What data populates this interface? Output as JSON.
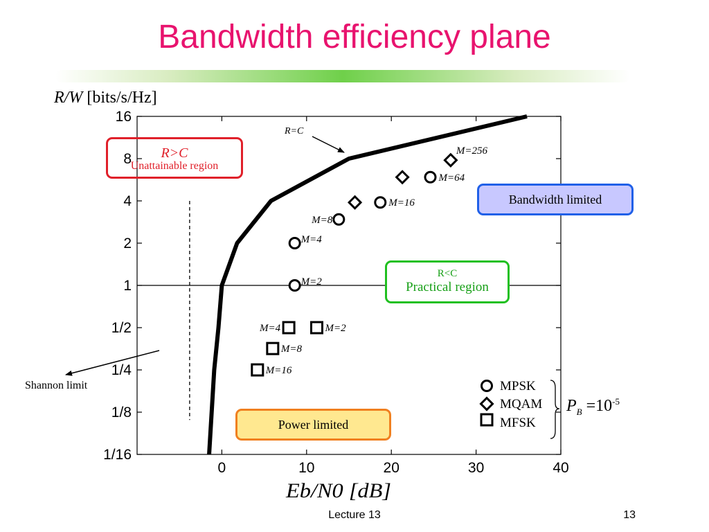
{
  "slide": {
    "title": "Bandwidth efficiency plane",
    "footer_center": "Lecture 13",
    "footer_page": "13"
  },
  "y_label": {
    "italic": "R/W",
    "rest": " [bits/s/Hz]"
  },
  "colors": {
    "title": "#e8136e",
    "unattainable": "#e0202a",
    "bandwidth_border": "#2060e8",
    "bandwidth_fill": "#c8c8ff",
    "practical": "#20c020",
    "power_border": "#f08020",
    "power_fill": "#ffe890"
  },
  "boxes": {
    "unattainable_line1": "R>C",
    "unattainable_line2": "Unattainable region",
    "bandwidth": "Bandwidth limited",
    "practical_line1": "R<C",
    "practical_line2": "Practical region",
    "power": "Power limited"
  },
  "annotations": {
    "rc_label": "R=C",
    "shannon": "Shannon limit"
  },
  "legend": {
    "mpsk": "MPSK",
    "mqam": "MQAM",
    "mfsk": "MFSK",
    "pb_symbol": "P",
    "pb_sub": "B",
    "pb_rest": " =10",
    "pb_exp": "-5"
  },
  "chart_data": {
    "type": "scatter",
    "xlim": [
      -10,
      40
    ],
    "x_ticks": [
      0,
      10,
      20,
      30,
      40
    ],
    "x_tick_labels": [
      "0",
      "10",
      "20",
      "30",
      "40"
    ],
    "y_scale": "log2",
    "ylim": [
      0.0625,
      16
    ],
    "y_ticks": [
      0.0625,
      0.125,
      0.25,
      0.5,
      1,
      2,
      4,
      8,
      16
    ],
    "y_tick_labels": [
      "1/16",
      "1/8",
      "1/4",
      "1/2",
      "1",
      "2",
      "4",
      "8",
      "16"
    ],
    "xlabel": "Eb/N0 [dB]",
    "capacity_curve": {
      "name": "R=C",
      "x": [
        -1.5,
        -1.2,
        -0.9,
        -0.4,
        0.0,
        1.8,
        5.8,
        15.0,
        36.0
      ],
      "y": [
        0.0625,
        0.125,
        0.25,
        0.5,
        1,
        2,
        4,
        8,
        16
      ]
    },
    "shannon_limit": {
      "x": -3.8,
      "y_range": [
        0.11,
        4
      ]
    },
    "reference_line_y": 1,
    "series": [
      {
        "name": "MPSK",
        "marker": "circle",
        "points": [
          {
            "label": "M=2",
            "x": 8.6,
            "y": 1
          },
          {
            "label": "M=4",
            "x": 8.6,
            "y": 2
          },
          {
            "label": "M=8",
            "x": 13.8,
            "y": 2.95
          },
          {
            "label": "M=16",
            "x": 18.7,
            "y": 3.9
          },
          {
            "label": "M=64",
            "x": 24.6,
            "y": 5.9
          }
        ]
      },
      {
        "name": "MQAM",
        "marker": "diamond",
        "points": [
          {
            "label": "",
            "x": 15.7,
            "y": 3.9
          },
          {
            "label": "",
            "x": 21.3,
            "y": 5.9
          },
          {
            "label": "M=256",
            "x": 27.0,
            "y": 7.8
          }
        ]
      },
      {
        "name": "MFSK",
        "marker": "square",
        "points": [
          {
            "label": "M=2",
            "x": 11.2,
            "y": 0.5
          },
          {
            "label": "M=4",
            "x": 7.9,
            "y": 0.5
          },
          {
            "label": "M=8",
            "x": 6.0,
            "y": 0.355
          },
          {
            "label": "M=16",
            "x": 4.2,
            "y": 0.25
          }
        ]
      }
    ]
  }
}
